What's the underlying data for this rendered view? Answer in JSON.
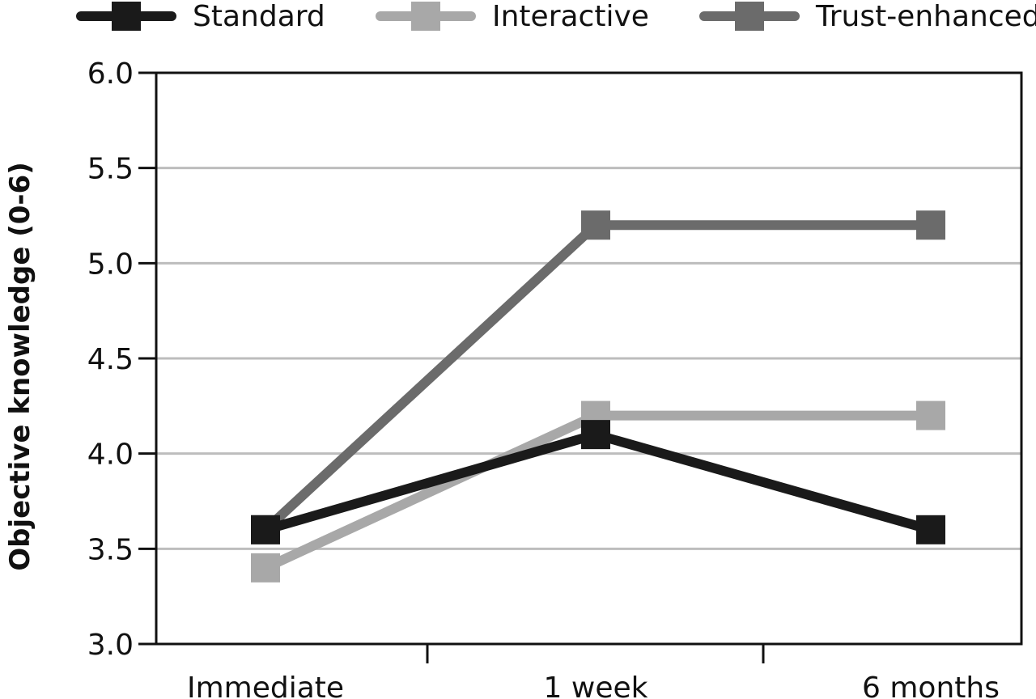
{
  "chart_data": {
    "type": "line",
    "title": "",
    "xlabel": "",
    "ylabel": "Objective knowledge (0-6)",
    "categories": [
      "Immediate",
      "1 week",
      "6 months"
    ],
    "ylim": [
      3.0,
      6.0
    ],
    "yticks": [
      "3.0",
      "3.5",
      "4.0",
      "4.5",
      "5.0",
      "5.5",
      "6.0"
    ],
    "grid": true,
    "legend_position": "top",
    "series": [
      {
        "name": "Standard",
        "values": [
          3.6,
          4.1,
          3.6
        ],
        "color": "#1a1a1a"
      },
      {
        "name": "Interactive",
        "values": [
          3.4,
          4.2,
          4.2
        ],
        "color": "#a8a8a8"
      },
      {
        "name": "Trust-enhanced",
        "values": [
          3.6,
          5.2,
          5.2
        ],
        "color": "#6b6b6b"
      }
    ]
  }
}
